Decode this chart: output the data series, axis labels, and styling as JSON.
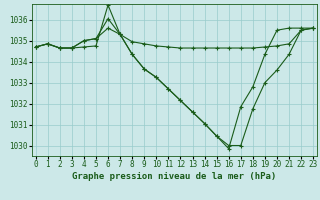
{
  "title": "Graphe pression niveau de la mer (hPa)",
  "bg_color": "#cce8e8",
  "grid_color": "#99cccc",
  "line_color": "#1a5c1a",
  "series": [
    [
      1034.7,
      1034.85,
      1034.65,
      1034.65,
      1034.7,
      1034.75,
      1036.7,
      1035.3,
      1034.95,
      1034.85,
      1034.75,
      1034.7,
      1034.65,
      1034.65,
      1034.65,
      1034.65,
      1034.65,
      1034.65,
      1034.65,
      1034.7,
      1034.75,
      1034.85,
      1035.5,
      1035.6
    ],
    [
      1034.7,
      1034.85,
      1034.65,
      1034.65,
      1035.0,
      1035.1,
      1035.6,
      1035.3,
      1034.35,
      1033.65,
      1033.25,
      1032.7,
      1032.15,
      1031.6,
      1031.05,
      1030.45,
      1030.0,
      1030.0,
      1031.75,
      1033.0,
      1033.6,
      1034.35,
      1035.5,
      1035.6
    ],
    [
      1034.7,
      1034.85,
      1034.65,
      1034.65,
      1035.0,
      1035.1,
      1036.05,
      1035.3,
      1034.35,
      1033.65,
      1033.25,
      1032.7,
      1032.15,
      1031.6,
      1031.05,
      1030.45,
      1029.85,
      1031.85,
      1032.8,
      1034.35,
      1035.5,
      1035.6,
      1035.6,
      1035.6
    ]
  ],
  "xmin": 0,
  "xmax": 23,
  "ymin": 1029.5,
  "ymax": 1036.75,
  "yticks": [
    1030,
    1031,
    1032,
    1033,
    1034,
    1035,
    1036
  ],
  "xticks": [
    0,
    1,
    2,
    3,
    4,
    5,
    6,
    7,
    8,
    9,
    10,
    11,
    12,
    13,
    14,
    15,
    16,
    17,
    18,
    19,
    20,
    21,
    22,
    23
  ],
  "marker": "+",
  "markersize": 3,
  "linewidth": 0.8,
  "tick_fontsize": 5.5,
  "label_fontsize": 6.5
}
